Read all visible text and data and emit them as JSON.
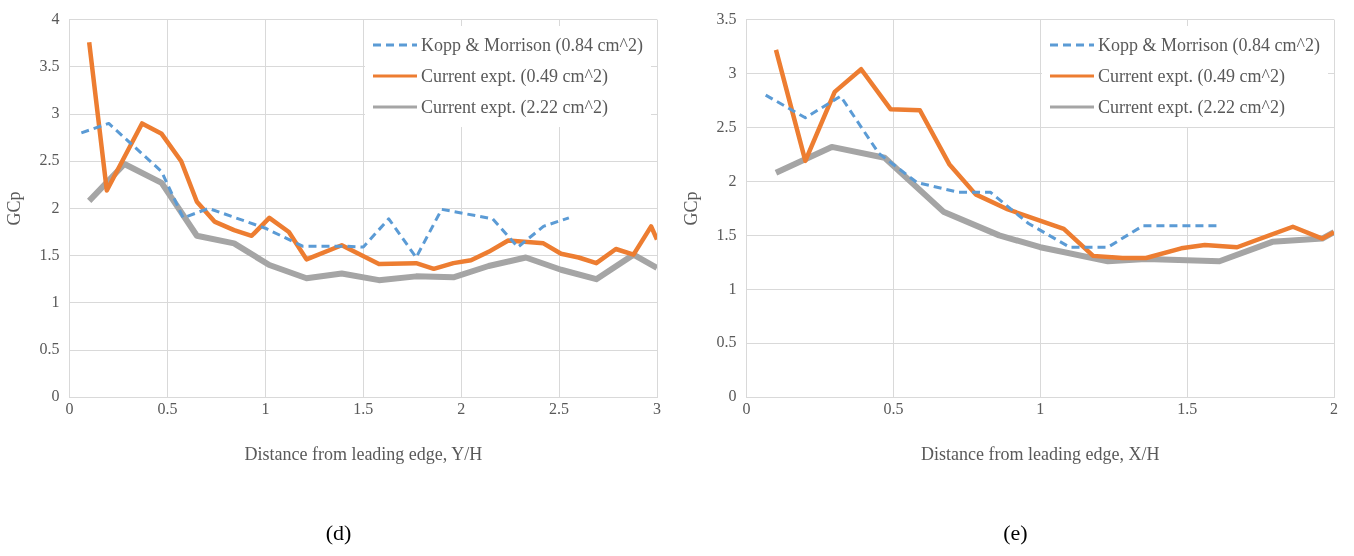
{
  "chart_data": [
    {
      "type": "line",
      "xlabel": "Distance from leading edge, Y/H",
      "ylabel": "GCp",
      "annotations": [
        "(d)"
      ],
      "xlim": [
        0,
        3
      ],
      "xticks": [
        0,
        0.5,
        1,
        1.5,
        2,
        2.5,
        3
      ],
      "ylim": [
        0,
        4
      ],
      "yticks": [
        0,
        0.5,
        1,
        1.5,
        2,
        2.5,
        3,
        3.5,
        4
      ],
      "grid": true,
      "legend": "top right",
      "marker": "none",
      "series": [
        {
          "name": "Kopp & Morrison (0.84 cm^2)",
          "color": "#5b9bd5",
          "line_style": "dashed",
          "x": [
            0.06,
            0.2,
            0.47,
            0.58,
            0.71,
            1.0,
            1.19,
            1.4,
            1.5,
            1.63,
            1.77,
            1.9,
            2.16,
            2.29,
            2.42,
            2.55
          ],
          "values": [
            2.8,
            2.9,
            2.39,
            1.9,
            2.0,
            1.79,
            1.6,
            1.6,
            1.59,
            1.89,
            1.48,
            1.99,
            1.89,
            1.59,
            1.81,
            1.9
          ]
        },
        {
          "name": "Current expt. (0.49 cm^2)",
          "color": "#ed7d31",
          "line_style": "solid",
          "x": [
            0.1,
            0.19,
            0.37,
            0.47,
            0.57,
            0.65,
            0.74,
            0.84,
            0.93,
            1.02,
            1.12,
            1.21,
            1.39,
            1.58,
            1.77,
            1.86,
            1.96,
            2.05,
            2.14,
            2.24,
            2.42,
            2.51,
            2.6,
            2.69,
            2.79,
            2.88,
            2.97,
            3.0
          ],
          "values": [
            3.76,
            2.19,
            2.9,
            2.79,
            2.5,
            2.07,
            1.86,
            1.77,
            1.71,
            1.9,
            1.75,
            1.46,
            1.61,
            1.41,
            1.42,
            1.36,
            1.42,
            1.45,
            1.54,
            1.66,
            1.63,
            1.52,
            1.48,
            1.42,
            1.57,
            1.51,
            1.81,
            1.67
          ]
        },
        {
          "name": "Current expt. (2.22 cm^2)",
          "color": "#a5a5a5",
          "line_style": "solid",
          "x": [
            0.1,
            0.28,
            0.47,
            0.65,
            0.84,
            1.02,
            1.21,
            1.39,
            1.58,
            1.77,
            1.96,
            2.14,
            2.33,
            2.51,
            2.69,
            2.88,
            3.0
          ],
          "values": [
            2.08,
            2.47,
            2.27,
            1.71,
            1.63,
            1.4,
            1.26,
            1.31,
            1.24,
            1.28,
            1.27,
            1.39,
            1.48,
            1.35,
            1.25,
            1.51,
            1.37
          ]
        }
      ]
    },
    {
      "type": "line",
      "xlabel": "Distance from leading edge, X/H",
      "ylabel": "GCp",
      "annotations": [
        "(e)"
      ],
      "xlim": [
        0,
        2
      ],
      "xticks": [
        0,
        0.5,
        1,
        1.5,
        2
      ],
      "ylim": [
        0,
        3.5
      ],
      "yticks": [
        0,
        0.5,
        1,
        1.5,
        2,
        2.5,
        3,
        3.5
      ],
      "grid": true,
      "legend": "top right",
      "marker": "none",
      "series": [
        {
          "name": "Kopp & Morrison (0.84 cm^2)",
          "color": "#5b9bd5",
          "line_style": "dashed",
          "x": [
            0.065,
            0.2,
            0.32,
            0.45,
            0.58,
            0.72,
            0.83,
            0.96,
            1.1,
            1.23,
            1.35,
            1.61
          ],
          "values": [
            2.8,
            2.59,
            2.79,
            2.26,
            1.99,
            1.9,
            1.9,
            1.61,
            1.39,
            1.39,
            1.59,
            1.59
          ]
        },
        {
          "name": "Current expt. (0.49 cm^2)",
          "color": "#ed7d31",
          "line_style": "solid",
          "x": [
            0.1,
            0.2,
            0.3,
            0.39,
            0.49,
            0.59,
            0.69,
            0.78,
            0.89,
            1.08,
            1.18,
            1.28,
            1.36,
            1.48,
            1.56,
            1.67,
            1.86,
            1.96,
            2.0
          ],
          "values": [
            3.22,
            2.19,
            2.83,
            3.04,
            2.67,
            2.66,
            2.16,
            1.88,
            1.74,
            1.56,
            1.31,
            1.29,
            1.29,
            1.38,
            1.41,
            1.39,
            1.58,
            1.47,
            1.53
          ]
        },
        {
          "name": "Current expt. (2.22 cm^2)",
          "color": "#a5a5a5",
          "line_style": "solid",
          "x": [
            0.1,
            0.29,
            0.47,
            0.67,
            0.86,
            1.0,
            1.23,
            1.36,
            1.61,
            1.79,
            1.96,
            2.0
          ],
          "values": [
            2.08,
            2.32,
            2.22,
            1.72,
            1.5,
            1.39,
            1.26,
            1.28,
            1.26,
            1.44,
            1.47,
            1.53
          ]
        }
      ]
    }
  ]
}
